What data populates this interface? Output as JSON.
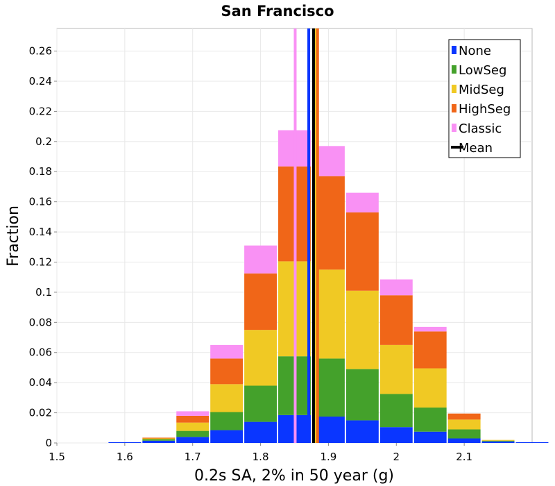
{
  "chart_data": {
    "type": "bar",
    "stacked": true,
    "title": "San Francisco",
    "xlabel": "0.2s SA, 2% in 50 year (g)",
    "ylabel": "Fraction",
    "xlim": [
      1.5,
      2.2
    ],
    "ylim": [
      0,
      0.275
    ],
    "x_ticks": [
      "1.5",
      "1.6",
      "1.7",
      "1.8",
      "1.9",
      "2",
      "2.1"
    ],
    "y_ticks": [
      "0",
      "0.02",
      "0.04",
      "0.06",
      "0.08",
      "0.1",
      "0.12",
      "0.14",
      "0.16",
      "0.18",
      "0.2",
      "0.22",
      "0.24",
      "0.26"
    ],
    "x_tick_values": [
      1.5,
      1.6,
      1.7,
      1.8,
      1.9,
      2.0,
      2.1
    ],
    "y_tick_values": [
      0,
      0.02,
      0.04,
      0.06,
      0.08,
      0.1,
      0.12,
      0.14,
      0.16,
      0.18,
      0.2,
      0.22,
      0.24,
      0.26
    ],
    "grid": true,
    "legend_position": "top-right",
    "bin_width": 0.025,
    "bin_starts": [
      1.525,
      1.575,
      1.625,
      1.675,
      1.725,
      1.775,
      1.825,
      1.875,
      1.925,
      1.975,
      2.025,
      2.075,
      2.125,
      2.175
    ],
    "series": [
      {
        "name": "None",
        "color": "#0a36ff",
        "values": [
          0.0,
          0.0005,
          0.0015,
          0.004,
          0.0085,
          0.014,
          0.0185,
          0.0175,
          0.015,
          0.0105,
          0.0075,
          0.003,
          0.001,
          0.0005
        ]
      },
      {
        "name": "LowSeg",
        "color": "#44a12b",
        "values": [
          0.0,
          0.0,
          0.001,
          0.004,
          0.012,
          0.024,
          0.039,
          0.0385,
          0.034,
          0.022,
          0.016,
          0.006,
          0.0005,
          0.0
        ]
      },
      {
        "name": "MidSeg",
        "color": "#f0c924",
        "values": [
          0.0,
          0.0,
          0.0005,
          0.0055,
          0.0185,
          0.037,
          0.063,
          0.059,
          0.052,
          0.0325,
          0.026,
          0.0065,
          0.0005,
          0.0
        ]
      },
      {
        "name": "HighSeg",
        "color": "#f06618",
        "values": [
          0.0,
          0.0,
          0.0005,
          0.0045,
          0.017,
          0.0375,
          0.063,
          0.062,
          0.052,
          0.033,
          0.0245,
          0.004,
          0.0,
          0.0
        ]
      },
      {
        "name": "Classic",
        "color": "#f991f4",
        "values": [
          0.0,
          0.0,
          0.0,
          0.003,
          0.009,
          0.0185,
          0.024,
          0.02,
          0.013,
          0.0105,
          0.003,
          0.0,
          0.0,
          0.0
        ]
      }
    ],
    "mean_lines": [
      {
        "name": "Classic",
        "color": "#f991f4",
        "x": 1.851
      },
      {
        "name": "None",
        "color": "#0a36ff",
        "x": 1.871
      },
      {
        "name": "LowSeg",
        "color": "#44a12b",
        "x": 1.881
      },
      {
        "name": "MidSeg",
        "color": "#f0c924",
        "x": 1.882
      },
      {
        "name": "HighSeg",
        "color": "#f06618",
        "x": 1.884
      },
      {
        "name": "Mean",
        "color": "#000000",
        "x": 1.878
      }
    ],
    "legend": [
      {
        "label": "None",
        "color": "#0a36ff",
        "kind": "box"
      },
      {
        "label": "LowSeg",
        "color": "#44a12b",
        "kind": "box"
      },
      {
        "label": "MidSeg",
        "color": "#f0c924",
        "kind": "box"
      },
      {
        "label": "HighSeg",
        "color": "#f06618",
        "kind": "box"
      },
      {
        "label": "Classic",
        "color": "#f991f4",
        "kind": "box"
      },
      {
        "label": "Mean",
        "color": "#000000",
        "kind": "line"
      }
    ]
  }
}
